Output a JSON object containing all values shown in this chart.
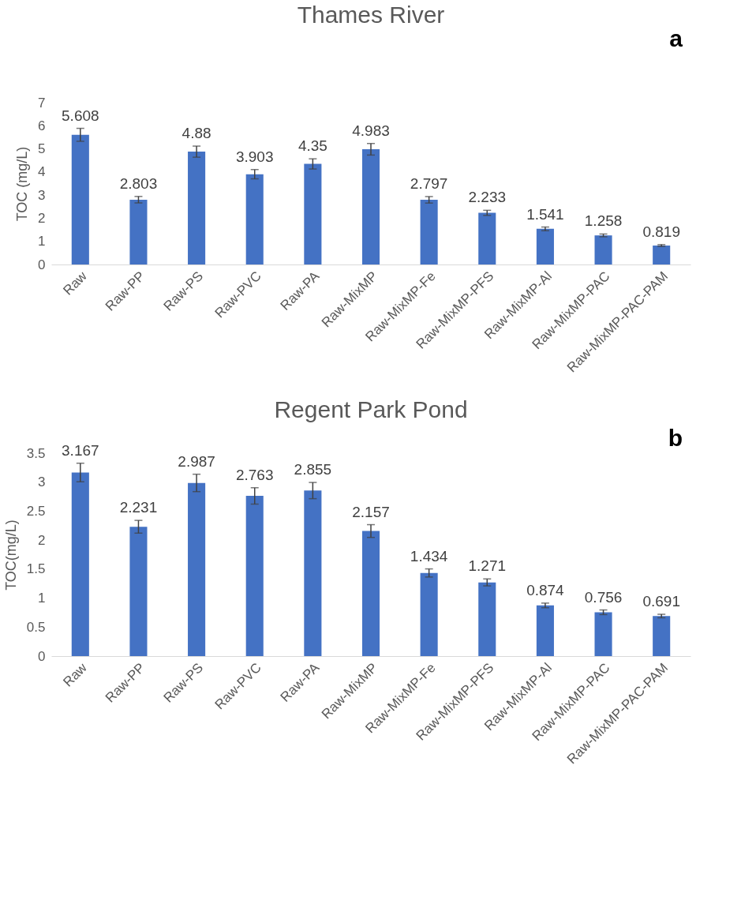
{
  "chart_data": [
    {
      "type": "bar",
      "title": "Thames River",
      "ylabel": "TOC (mg/L)",
      "annotations": [
        "a"
      ],
      "categories": [
        "Raw",
        "Raw-PP",
        "Raw-PS",
        "Raw-PVC",
        "Raw-PA",
        "Raw-MixMP",
        "Raw-MixMP-Fe",
        "Raw-MixMP-PFS",
        "Raw-MixMP-Al",
        "Raw-MixMP-PAC",
        "Raw-MixMP-PAC-PAM"
      ],
      "values": [
        5.608,
        2.803,
        4.88,
        3.903,
        4.35,
        4.983,
        2.797,
        2.233,
        1.541,
        1.258,
        0.819
      ],
      "errors": [
        0.28,
        0.14,
        0.24,
        0.2,
        0.22,
        0.25,
        0.14,
        0.11,
        0.08,
        0.06,
        0.04
      ],
      "color": "#4472c4",
      "ylim": [
        0,
        7
      ],
      "yticks": [
        0,
        1,
        2,
        3,
        4,
        5,
        6,
        7
      ],
      "grid": false,
      "data_labels": true
    },
    {
      "type": "bar",
      "title": "Regent Park Pond",
      "ylabel": "TOC(mg/L)",
      "annotations": [
        "b"
      ],
      "categories": [
        "Raw",
        "Raw-PP",
        "Raw-PS",
        "Raw-PVC",
        "Raw-PA",
        "Raw-MixMP",
        "Raw-MixMP-Fe",
        "Raw-MixMP-PFS",
        "Raw-MixMP-Al",
        "Raw-MixMP-PAC",
        "Raw-MixMP-PAC-PAM"
      ],
      "values": [
        3.167,
        2.231,
        2.987,
        2.763,
        2.855,
        2.157,
        1.434,
        1.271,
        0.874,
        0.756,
        0.691
      ],
      "errors": [
        0.16,
        0.11,
        0.15,
        0.14,
        0.14,
        0.11,
        0.07,
        0.06,
        0.04,
        0.04,
        0.03
      ],
      "color": "#4472c4",
      "ylim": [
        0,
        3.5
      ],
      "yticks": [
        0,
        0.5,
        1,
        1.5,
        2,
        2.5,
        3,
        3.5
      ],
      "grid": false,
      "data_labels": true
    }
  ]
}
